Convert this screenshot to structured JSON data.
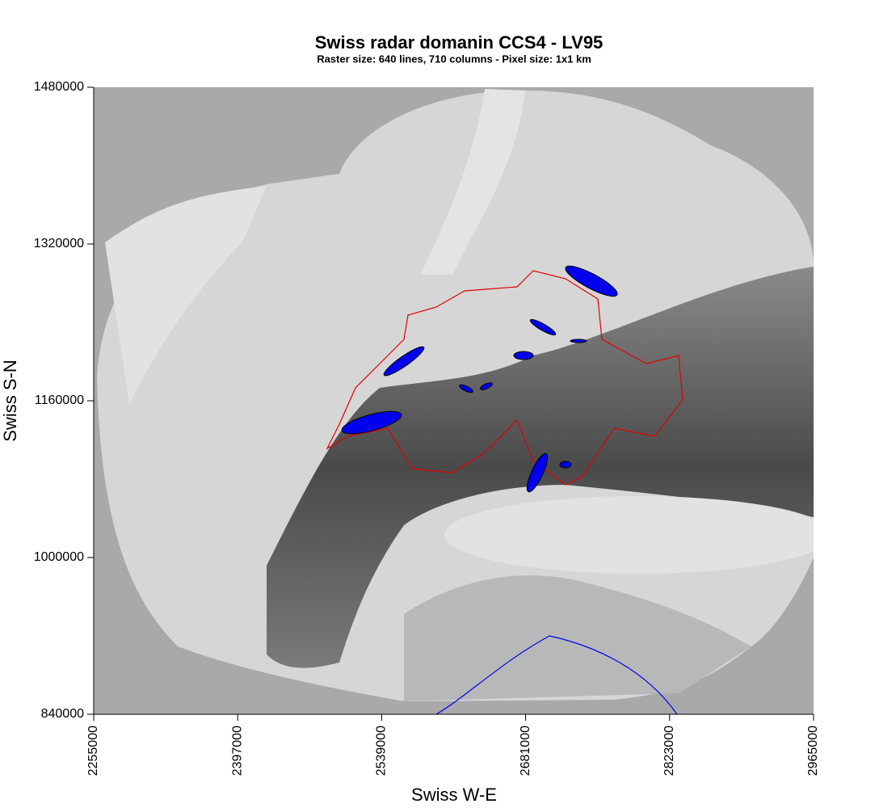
{
  "chart_data": {
    "type": "map",
    "title": "Swiss radar domanin CCS4 - LV95",
    "subtitle": "Raster size: 640 lines, 710 columns - Pixel size: 1x1 km",
    "x_label": "Swiss W-E",
    "y_label": "Swiss S-N",
    "xlim": [
      2255000,
      2965000
    ],
    "ylim": [
      840000,
      1480000
    ],
    "xticks": [
      2255000,
      2397000,
      2539000,
      2681000,
      2823000,
      2965000
    ],
    "yticks": [
      840000,
      1000000,
      1160000,
      1320000,
      1480000
    ]
  }
}
